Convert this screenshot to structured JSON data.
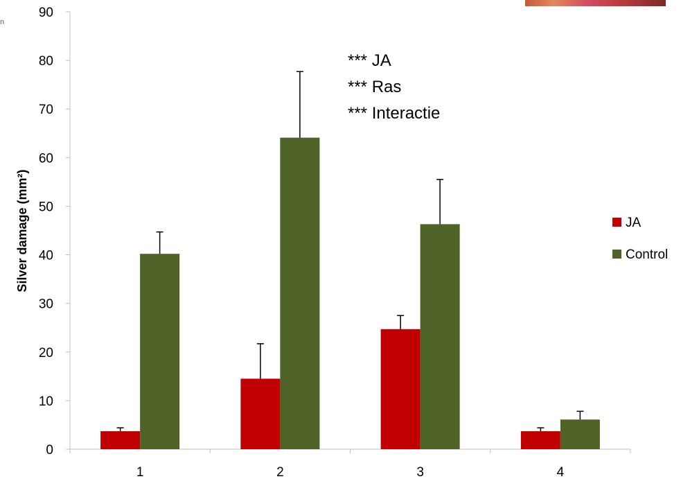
{
  "chart_data": {
    "type": "bar",
    "categories": [
      "1",
      "2",
      "3",
      "4"
    ],
    "series": [
      {
        "name": "JA",
        "color": "#c00000",
        "values": [
          3.7,
          14.5,
          24.7,
          3.7
        ],
        "errors": [
          0.7,
          7.2,
          2.8,
          0.7
        ]
      },
      {
        "name": "Control",
        "color": "#4f6228",
        "values": [
          40.2,
          64.1,
          46.3,
          6.1
        ],
        "errors": [
          4.5,
          13.6,
          9.2,
          1.7
        ]
      }
    ],
    "title": "",
    "xlabel": "",
    "ylabel": "Silver damage (mm²)",
    "ylim": [
      0,
      90
    ],
    "yticks": [
      0,
      10,
      20,
      30,
      40,
      50,
      60,
      70,
      80,
      90
    ],
    "grid": false,
    "legend_position": "right",
    "annotations": [
      "*** JA",
      "*** Ras",
      "*** Interactie"
    ]
  },
  "corner_text": "n"
}
